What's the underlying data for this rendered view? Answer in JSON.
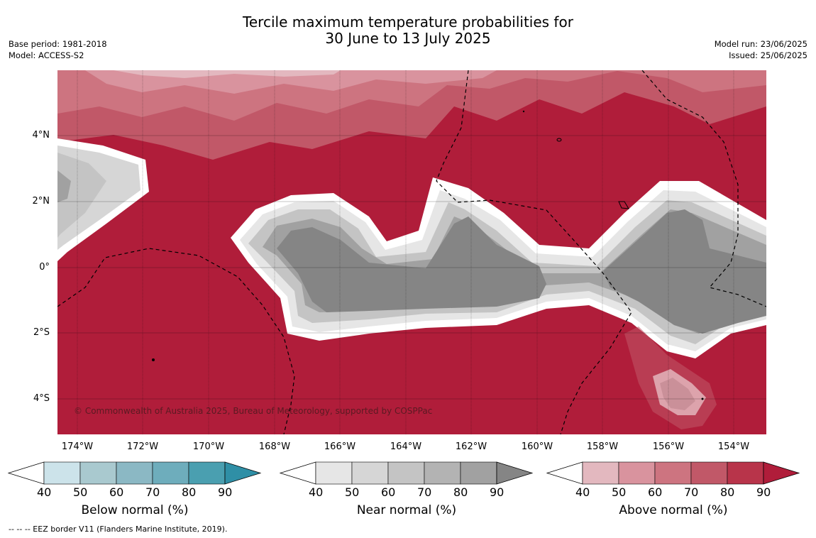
{
  "title": {
    "line1": "Tercile maximum temperature probabilities for",
    "line2": "30 June to 13 July 2025"
  },
  "meta": {
    "base_period": "Base period: 1981-2018",
    "model": "Model: ACCESS-S2",
    "model_run": "Model run: 23/06/2025",
    "issued": "Issued: 25/06/2025"
  },
  "map": {
    "lat_labels": [
      "4°N",
      "2°N",
      "0°",
      "2°S",
      "4°S"
    ],
    "lon_labels": [
      "174°W",
      "172°W",
      "170°W",
      "168°W",
      "166°W",
      "164°W",
      "162°W",
      "160°W",
      "158°W",
      "156°W",
      "154°W"
    ],
    "copyright": "© Commonwealth of Australia 2025, Bureau of Meteorology, supported by COSPPac",
    "background_color": "#b01d3a"
  },
  "colorbars": [
    {
      "label": "Below normal (%)",
      "ticks": [
        "40",
        "50",
        "60",
        "70",
        "80",
        "90"
      ],
      "colors": [
        "#ffffff",
        "#cce3ea",
        "#a9c9cf",
        "#8bb8c4",
        "#6eadbc",
        "#4a9fb0",
        "#2f8fa6"
      ]
    },
    {
      "label": "Near normal (%)",
      "ticks": [
        "40",
        "50",
        "60",
        "70",
        "80",
        "90"
      ],
      "colors": [
        "#ffffff",
        "#e6e6e6",
        "#d6d6d6",
        "#c4c4c4",
        "#b3b3b3",
        "#a1a1a1",
        "#858585"
      ]
    },
    {
      "label": "Above normal (%)",
      "ticks": [
        "40",
        "50",
        "60",
        "70",
        "80",
        "90"
      ],
      "colors": [
        "#ffffff",
        "#e3b8bf",
        "#d9939e",
        "#cd7480",
        "#c15868",
        "#b8344a",
        "#b01d3a"
      ]
    }
  ],
  "footnote": "-- -- -- EEZ border V11 (Flanders Marine Institute, 2019)."
}
